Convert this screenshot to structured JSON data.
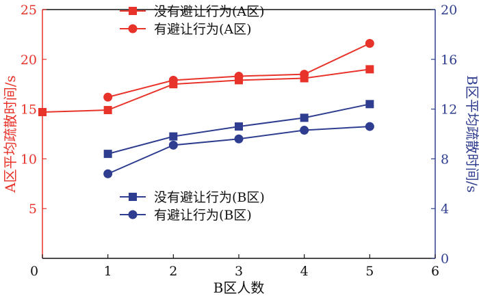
{
  "chart_data": {
    "type": "line",
    "x_axis": {
      "label": "B区人数",
      "range": [
        0,
        6
      ],
      "ticks": [
        "0",
        "1",
        "2",
        "3",
        "4",
        "5",
        "6"
      ]
    },
    "y_left_axis": {
      "label": "A区平均疏散时间/s",
      "range": [
        0,
        25
      ],
      "ticks": [
        "5",
        "10",
        "15",
        "20",
        "25"
      ],
      "color": "#e8332a"
    },
    "y_right_axis": {
      "label": "B区平均疏散时间/s",
      "range": [
        0,
        20
      ],
      "ticks": [
        "0",
        "4",
        "8",
        "12",
        "16",
        "20"
      ],
      "color": "#2e3d8f"
    },
    "series": [
      {
        "name": "没有避让行为(A区)",
        "axis": "left",
        "marker": "square",
        "color": "#e8332a",
        "x": [
          0,
          1,
          2,
          3,
          4,
          5
        ],
        "values": [
          14.7,
          14.9,
          17.5,
          17.9,
          18.1,
          19.0
        ]
      },
      {
        "name": "有避让行为(A区)",
        "axis": "left",
        "marker": "circle",
        "color": "#e8332a",
        "x": [
          1,
          2,
          3,
          4,
          5
        ],
        "values": [
          16.2,
          17.9,
          18.3,
          18.5,
          21.6
        ]
      },
      {
        "name": "没有避让行为(B区)",
        "axis": "right",
        "marker": "square",
        "color": "#2e3d8f",
        "x": [
          1,
          2,
          3,
          4,
          5
        ],
        "values": [
          8.4,
          9.8,
          10.6,
          11.3,
          12.4
        ]
      },
      {
        "name": "有避让行为(B区)",
        "axis": "right",
        "marker": "circle",
        "color": "#2e3d8f",
        "x": [
          1,
          2,
          3,
          4,
          5
        ],
        "values": [
          6.8,
          9.1,
          9.6,
          10.3,
          10.6
        ]
      }
    ],
    "legend": [
      {
        "placement": "top-center",
        "entries": [
          0,
          1
        ]
      },
      {
        "placement": "lower-center",
        "entries": [
          2,
          3
        ]
      }
    ],
    "grid": false
  }
}
